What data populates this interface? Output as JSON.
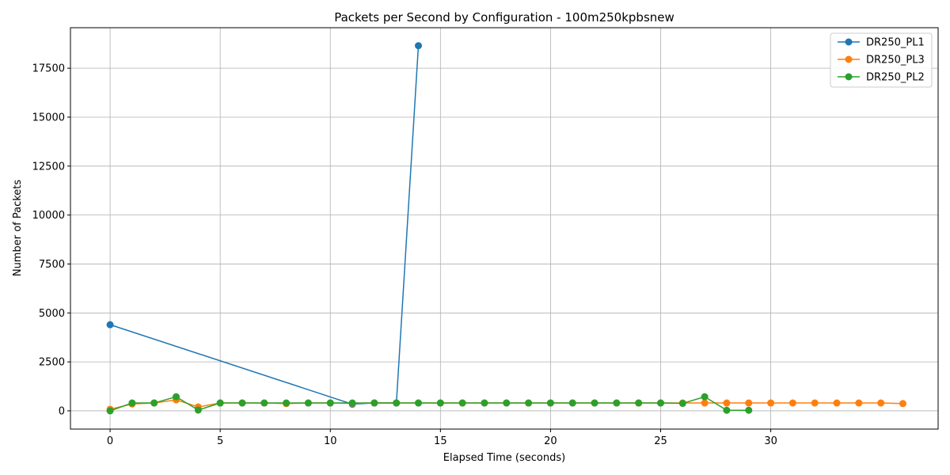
{
  "chart_data": {
    "type": "line",
    "title": "Packets per Second by Configuration - 100m250kpbsnew",
    "xlabel": "Elapsed Time (seconds)",
    "ylabel": "Number of Packets",
    "xlim": [
      -1.8,
      37.6
    ],
    "ylim": [
      -932,
      19568
    ],
    "xticks": [
      0,
      5,
      10,
      15,
      20,
      25,
      30
    ],
    "yticks": [
      0,
      2500,
      5000,
      7500,
      10000,
      12500,
      15000,
      17500
    ],
    "grid": true,
    "legend_position": "top-right",
    "series": [
      {
        "name": "DR250_PL1",
        "color": "#1f77b4",
        "x": [
          0,
          11,
          12,
          13,
          14
        ],
        "y": [
          4400,
          340,
          400,
          400,
          18650
        ]
      },
      {
        "name": "DR250_PL3",
        "color": "#ff7f0e",
        "x": [
          0,
          1,
          2,
          3,
          4,
          5,
          6,
          7,
          8,
          9,
          10,
          11,
          12,
          13,
          14,
          15,
          16,
          17,
          18,
          19,
          20,
          21,
          22,
          23,
          24,
          25,
          26,
          27,
          28,
          29,
          30,
          31,
          32,
          33,
          34,
          35,
          36
        ],
        "y": [
          80,
          350,
          400,
          560,
          200,
          400,
          400,
          400,
          370,
          400,
          400,
          380,
          400,
          400,
          400,
          400,
          400,
          400,
          400,
          400,
          400,
          400,
          400,
          400,
          400,
          400,
          400,
          400,
          400,
          400,
          400,
          400,
          400,
          400,
          400,
          400,
          370
        ]
      },
      {
        "name": "DR250_PL2",
        "color": "#2ca02c",
        "x": [
          0,
          1,
          2,
          3,
          4,
          5,
          6,
          7,
          8,
          9,
          10,
          11,
          12,
          13,
          14,
          15,
          16,
          17,
          18,
          19,
          20,
          21,
          22,
          23,
          24,
          25,
          26,
          27,
          28,
          29
        ],
        "y": [
          0,
          400,
          400,
          720,
          40,
          400,
          400,
          400,
          400,
          400,
          400,
          400,
          400,
          400,
          400,
          400,
          400,
          400,
          400,
          400,
          400,
          400,
          400,
          400,
          400,
          400,
          380,
          720,
          30,
          30
        ]
      }
    ]
  }
}
